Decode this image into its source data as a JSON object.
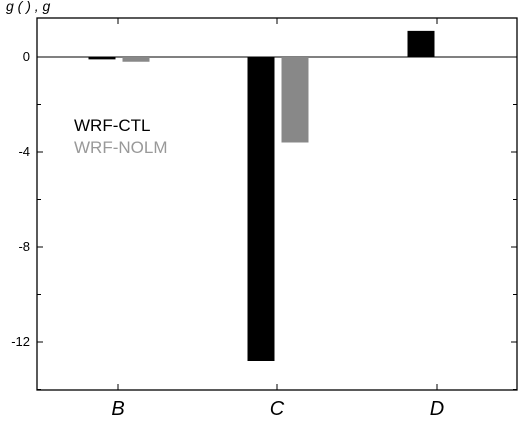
{
  "chart_data": {
    "type": "bar",
    "title": "",
    "title_partial": "g (   )          ,  g",
    "categories": [
      "B",
      "C",
      "D"
    ],
    "series": [
      {
        "name": "WRF-CTL",
        "color": "#000000",
        "values": [
          -0.1,
          -12.8,
          1.1
        ]
      },
      {
        "name": "WRF-NOLM",
        "color": "#888888",
        "values": [
          -0.2,
          -3.6,
          null
        ]
      }
    ],
    "yticks": [
      0,
      -4,
      -8,
      -12
    ],
    "ytick_labels": [
      "0",
      "-4",
      "-8",
      "-12"
    ],
    "ylim": [
      -14,
      1.5
    ],
    "xlabel": "",
    "ylabel": "",
    "grid": false,
    "legend": "left-middle"
  }
}
